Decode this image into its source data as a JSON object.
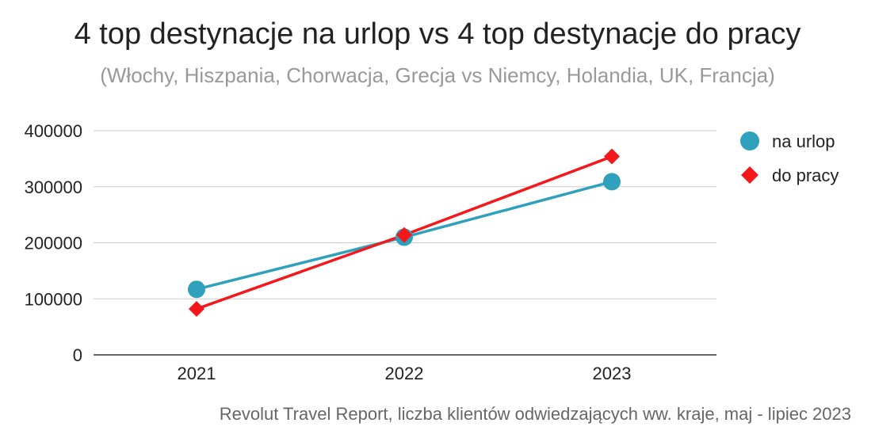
{
  "chart_data": {
    "type": "line",
    "title": "4 top destynacje na urlop vs 4 top destynacje do pracy",
    "subtitle": "(Włochy, Hiszpania, Chorwacja, Grecja vs Niemcy, Holandia, UK, Francja)",
    "source": "Revolut Travel Report, liczba klientów odwiedzających ww. kraje, maj - lipiec 2023",
    "categories": [
      "2021",
      "2022",
      "2023"
    ],
    "y_ticks": [
      "0",
      "100000",
      "200000",
      "300000",
      "400000"
    ],
    "ylim": [
      0,
      400000
    ],
    "grid": true,
    "legend_position": "right",
    "series": [
      {
        "name": "na urlop",
        "values": [
          117000,
          210000,
          309000
        ],
        "color": "#2fa1bd",
        "marker": "circle"
      },
      {
        "name": "do pracy",
        "values": [
          82000,
          214000,
          354000
        ],
        "color": "#f4171c",
        "marker": "diamond"
      }
    ]
  }
}
